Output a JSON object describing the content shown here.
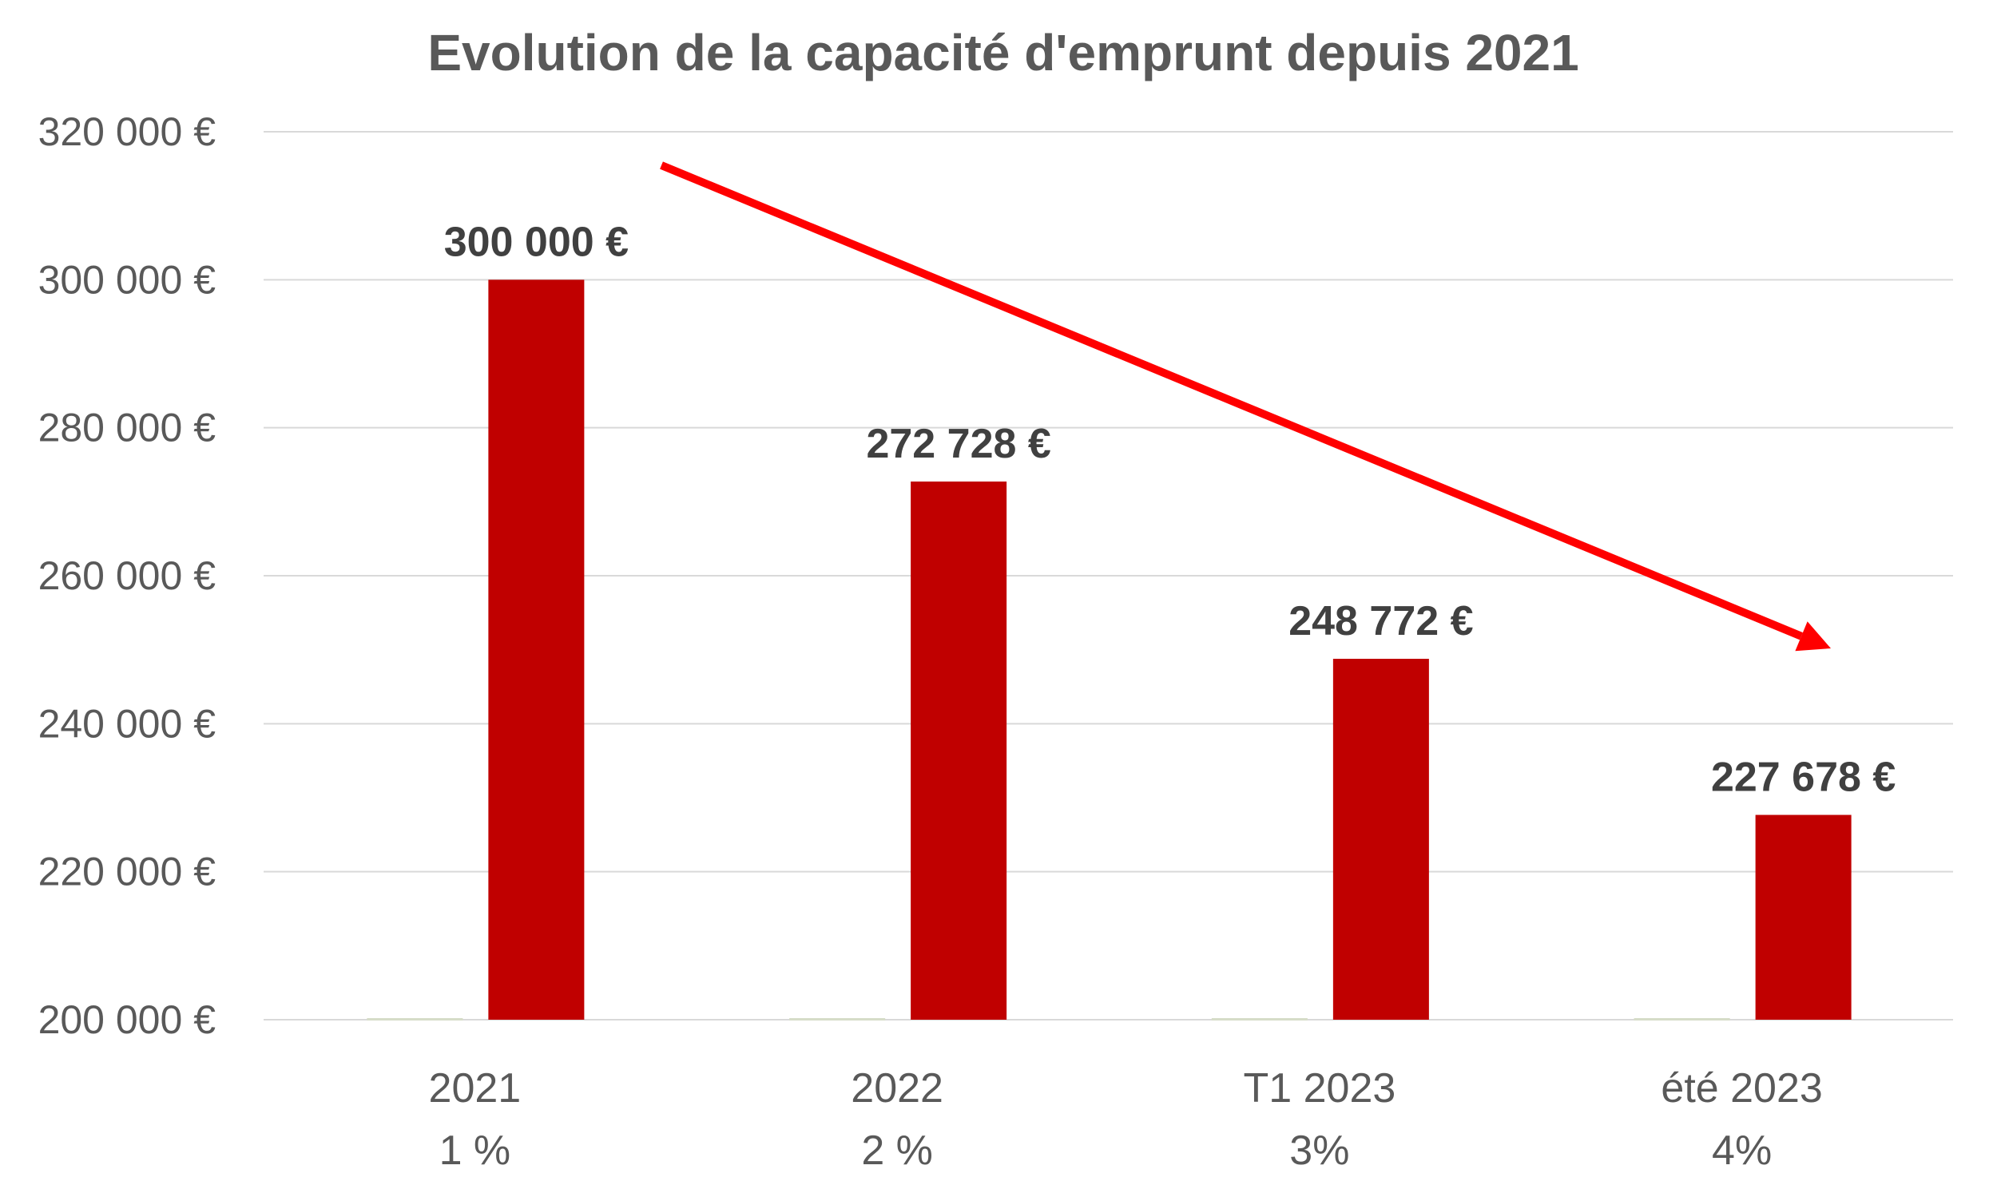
{
  "chart_data": {
    "type": "bar",
    "title": "Evolution de la capacité d'emprunt depuis 2021",
    "xlabel": "",
    "ylabel": "",
    "categories": [
      {
        "line1": "2021",
        "line2": "1 %"
      },
      {
        "line1": "2022",
        "line2": "2 %"
      },
      {
        "line1": "T1 2023",
        "line2": "3%"
      },
      {
        "line1": "été 2023",
        "line2": "4%"
      }
    ],
    "series": [
      {
        "values": [
          200000,
          200000,
          200000,
          200000
        ],
        "color": "#d6dcc8"
      },
      {
        "values": [
          300000,
          272728,
          248772,
          227678
        ],
        "color": "#c00000",
        "data_labels": [
          "300 000 €",
          "272 728 €",
          "248 772 €",
          "227 678 €"
        ]
      }
    ],
    "ylim": [
      200000,
      320000
    ],
    "yticks": [
      200000,
      220000,
      240000,
      260000,
      280000,
      300000,
      320000
    ],
    "ytick_labels": [
      "200 000 €",
      "220 000 €",
      "240 000 €",
      "260 000 €",
      "280 000 €",
      "300 000 €",
      "320 000 €"
    ],
    "grid": true,
    "legend": "none",
    "annotation": {
      "type": "arrow",
      "direction": "down-trend",
      "color": "#ff0000"
    }
  }
}
